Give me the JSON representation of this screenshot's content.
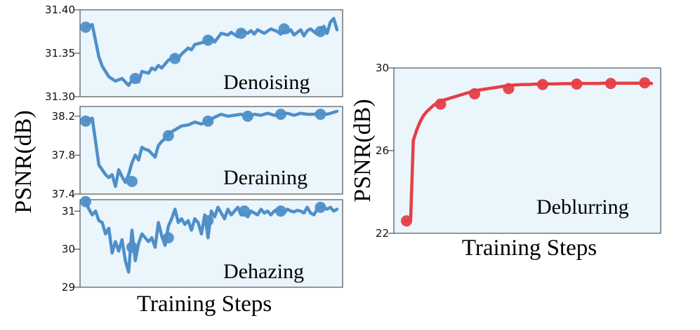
{
  "colors": {
    "blue": "#4f8fc8",
    "red": "#e43f45",
    "panel_bg": "#eaf5fc"
  },
  "left_group": {
    "ylabel": "PSNR(dB)",
    "xlabel": "Training Steps"
  },
  "right_group": {
    "ylabel": "PSNR(dB)",
    "xlabel": "Training Steps"
  },
  "chart_data": [
    {
      "type": "line",
      "title": "Denoising",
      "ylim": [
        31.3,
        31.4
      ],
      "y_ticks": [
        "31.30",
        "31.35",
        "31.40"
      ],
      "x_ticks": [],
      "grid": false,
      "series": [
        {
          "color": "#4f8fc8",
          "x": [
            0,
            2,
            4,
            5,
            7,
            9,
            11,
            13,
            14,
            15,
            16,
            17,
            19,
            20,
            21,
            22,
            23,
            25,
            27,
            28,
            29,
            31,
            32,
            33,
            35,
            37,
            38,
            39,
            40,
            41,
            43,
            44,
            46,
            47,
            49,
            50,
            51,
            52,
            54,
            56,
            58,
            59,
            60,
            61,
            62,
            63,
            65,
            66,
            67,
            68,
            70,
            71,
            72,
            73,
            74,
            75,
            76
          ],
          "y": [
            31.38,
            31.383,
            31.346,
            31.335,
            31.323,
            31.318,
            31.321,
            31.313,
            31.319,
            31.321,
            31.317,
            31.329,
            31.327,
            31.333,
            31.331,
            31.336,
            31.333,
            31.342,
            31.346,
            31.344,
            31.349,
            31.356,
            31.354,
            31.36,
            31.362,
            31.364,
            31.368,
            31.363,
            31.368,
            31.373,
            31.371,
            31.374,
            31.369,
            31.376,
            31.373,
            31.376,
            31.372,
            31.377,
            31.373,
            31.378,
            31.375,
            31.372,
            31.376,
            31.374,
            31.377,
            31.371,
            31.377,
            31.37,
            31.376,
            31.378,
            31.372,
            31.376,
            31.381,
            31.373,
            31.386,
            31.39,
            31.377
          ]
        }
      ],
      "markers": {
        "x": [
          0,
          15,
          27,
          37,
          47,
          60,
          71
        ],
        "y": [
          31.38,
          31.321,
          31.344,
          31.365,
          31.373,
          31.378,
          31.375
        ]
      }
    },
    {
      "type": "line",
      "title": "Deraining",
      "ylim": [
        37.4,
        38.3
      ],
      "y_ticks": [
        "37.4",
        "37.8",
        "38.2"
      ],
      "x_ticks": [],
      "grid": false,
      "series": [
        {
          "color": "#4f8fc8",
          "x": [
            0,
            2,
            4,
            6,
            7,
            8,
            9,
            10,
            11,
            12,
            13,
            14,
            15,
            16,
            17,
            18,
            19,
            21,
            22,
            23,
            24,
            25,
            27,
            29,
            31,
            33,
            35,
            37,
            39,
            41,
            43,
            45,
            47,
            49,
            51,
            53,
            55,
            57,
            59,
            61,
            63,
            65,
            67,
            69,
            71,
            73,
            76
          ],
          "y": [
            38.15,
            38.18,
            37.7,
            37.6,
            37.57,
            37.6,
            37.48,
            37.65,
            37.58,
            37.52,
            37.6,
            37.72,
            37.8,
            37.75,
            37.88,
            37.86,
            37.85,
            37.78,
            37.9,
            37.94,
            37.97,
            38.02,
            38.06,
            38.1,
            38.11,
            38.14,
            38.12,
            38.15,
            38.19,
            38.22,
            38.2,
            38.21,
            38.22,
            38.2,
            38.22,
            38.21,
            38.23,
            38.21,
            38.22,
            38.23,
            38.21,
            38.23,
            38.22,
            38.22,
            38.23,
            38.22,
            38.25
          ]
        }
      ],
      "markers": {
        "x": [
          0,
          14,
          25,
          37,
          49,
          59,
          71
        ],
        "y": [
          38.15,
          37.53,
          38.0,
          38.15,
          38.2,
          38.22,
          38.22
        ]
      }
    },
    {
      "type": "line",
      "title": "Dehazing",
      "ylim": [
        29,
        31.3
      ],
      "y_ticks": [
        "29",
        "30",
        "31"
      ],
      "x_ticks": [],
      "grid": false,
      "series": [
        {
          "color": "#4f8fc8",
          "x": [
            0,
            1,
            2,
            3,
            4,
            5,
            6,
            7,
            8,
            9,
            10,
            11,
            12,
            13,
            14,
            15,
            16,
            17,
            18,
            19,
            20,
            21,
            22,
            23,
            24,
            25,
            26,
            27,
            28,
            29,
            30,
            31,
            32,
            33,
            34,
            35,
            36,
            37,
            38,
            39,
            40,
            41,
            42,
            43,
            44,
            45,
            46,
            47,
            48,
            49,
            50,
            51,
            52,
            53,
            54,
            55,
            56,
            57,
            58,
            59,
            60,
            61,
            62,
            63,
            64,
            65,
            66,
            67,
            68,
            69,
            70,
            71,
            72,
            73,
            74,
            75,
            76
          ],
          "y": [
            31.25,
            31.05,
            30.9,
            31.0,
            30.75,
            30.7,
            30.4,
            30.55,
            29.9,
            30.2,
            29.95,
            30.25,
            29.7,
            29.4,
            30.5,
            29.7,
            30.15,
            30.4,
            30.3,
            30.2,
            30.3,
            30.05,
            30.7,
            30.35,
            30.1,
            30.6,
            30.8,
            31.05,
            30.7,
            30.8,
            30.65,
            30.75,
            30.5,
            30.8,
            30.7,
            30.4,
            30.9,
            30.3,
            31.0,
            30.85,
            31.1,
            30.95,
            30.8,
            31.05,
            30.9,
            31.0,
            31.1,
            30.9,
            30.95,
            30.85,
            31.0,
            30.95,
            30.9,
            31.05,
            30.95,
            31.0,
            30.9,
            31.0,
            31.05,
            31.0,
            30.95,
            31.05,
            31.0,
            30.98,
            31.02,
            31.0,
            30.95,
            31.1,
            30.95,
            30.9,
            31.05,
            31.15,
            31.1,
            31.05,
            31.1,
            31.0,
            31.05
          ]
        }
      ],
      "markers": {
        "x": [
          0,
          14,
          25,
          37,
          48,
          59,
          71
        ],
        "y": [
          31.25,
          30.05,
          30.3,
          30.75,
          31.0,
          31.0,
          31.1
        ]
      }
    },
    {
      "type": "line",
      "title": "Deblurring",
      "ylim": [
        22,
        30
      ],
      "y_ticks": [
        "22",
        "26",
        "30"
      ],
      "x_ticks": [],
      "grid": false,
      "series": [
        {
          "color": "#e43f45",
          "x": [
            0,
            1.2,
            2,
            3,
            4,
            5,
            6,
            7,
            8,
            10,
            12,
            14,
            16,
            18,
            20,
            22,
            24,
            26,
            28,
            30,
            32,
            34,
            36,
            38,
            40,
            42,
            44,
            46,
            48,
            50,
            52,
            54,
            56,
            58,
            60,
            62,
            64,
            66,
            68,
            70,
            72
          ],
          "y": [
            22.6,
            22.6,
            26.5,
            27.0,
            27.4,
            27.7,
            27.9,
            28.05,
            28.2,
            28.4,
            28.5,
            28.6,
            28.7,
            28.8,
            28.9,
            28.95,
            29.0,
            29.05,
            29.1,
            29.15,
            29.18,
            29.2,
            29.2,
            29.22,
            29.22,
            29.23,
            29.23,
            29.24,
            29.24,
            29.25,
            29.25,
            29.25,
            29.25,
            29.26,
            29.26,
            29.26,
            29.26,
            29.26,
            29.26,
            29.26,
            29.25
          ]
        }
      ],
      "markers": {
        "x": [
          0,
          10,
          20,
          30,
          40,
          50,
          60,
          70
        ],
        "y": [
          22.6,
          28.25,
          28.75,
          29.0,
          29.2,
          29.22,
          29.25,
          29.28
        ]
      }
    }
  ]
}
